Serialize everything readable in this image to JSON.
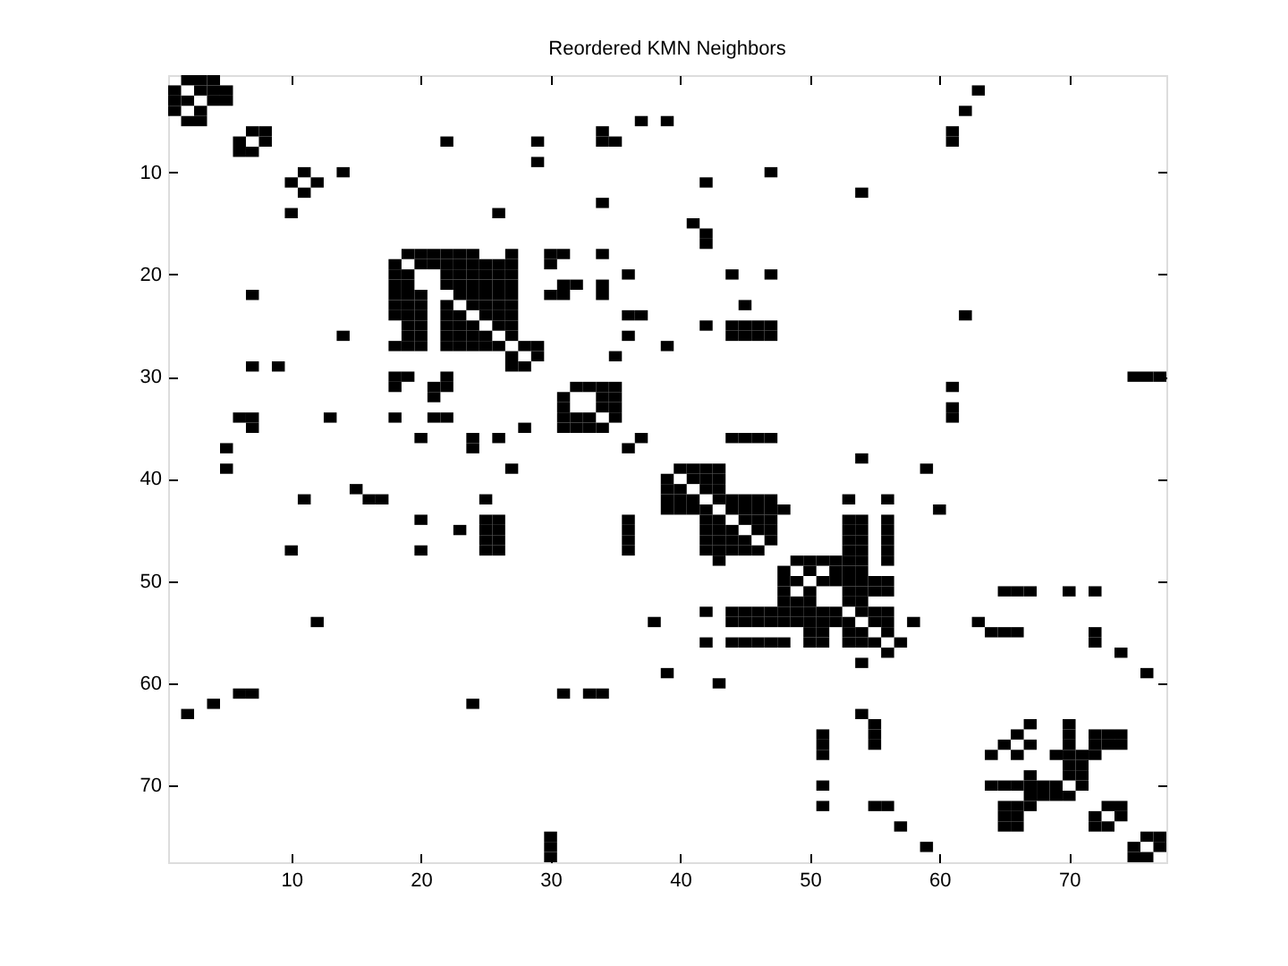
{
  "chart_data": {
    "type": "scatter",
    "title": "Reordered KMN Neighbors",
    "marker": "square",
    "color": "#000000",
    "grid": false,
    "xlim": [
      0.5,
      77.5
    ],
    "ylim": [
      77.5,
      0.5
    ],
    "xticks": [
      10,
      20,
      30,
      40,
      50,
      60,
      70
    ],
    "yticks": [
      10,
      20,
      30,
      40,
      50,
      60,
      70
    ],
    "x": [
      2,
      3,
      4,
      1,
      3,
      4,
      5,
      63,
      1,
      2,
      4,
      5,
      1,
      3,
      62,
      2,
      3,
      37,
      39,
      7,
      8,
      34,
      61,
      6,
      8,
      22,
      29,
      34,
      35,
      61,
      6,
      7,
      29,
      11,
      14,
      47,
      10,
      12,
      42,
      11,
      54,
      34,
      10,
      26,
      41,
      42,
      42,
      19,
      20,
      21,
      22,
      23,
      24,
      27,
      30,
      31,
      34,
      18,
      20,
      21,
      22,
      23,
      24,
      25,
      26,
      27,
      30,
      18,
      19,
      22,
      23,
      24,
      25,
      26,
      27,
      36,
      44,
      47,
      18,
      19,
      22,
      23,
      24,
      25,
      26,
      27,
      31,
      32,
      34,
      7,
      18,
      19,
      20,
      23,
      24,
      25,
      26,
      27,
      30,
      31,
      34,
      18,
      19,
      20,
      22,
      24,
      25,
      26,
      27,
      45,
      18,
      19,
      20,
      22,
      23,
      25,
      26,
      27,
      36,
      37,
      62,
      19,
      20,
      22,
      23,
      24,
      26,
      27,
      42,
      44,
      45,
      46,
      47,
      14,
      19,
      20,
      22,
      23,
      24,
      25,
      27,
      36,
      44,
      45,
      46,
      47,
      18,
      19,
      20,
      22,
      23,
      24,
      25,
      26,
      28,
      29,
      39,
      27,
      29,
      35,
      7,
      9,
      27,
      28,
      18,
      19,
      22,
      75,
      76,
      77,
      18,
      21,
      22,
      32,
      33,
      34,
      35,
      61,
      21,
      31,
      34,
      35,
      31,
      34,
      35,
      61,
      6,
      7,
      13,
      18,
      21,
      22,
      31,
      32,
      33,
      35,
      61,
      7,
      28,
      31,
      32,
      33,
      34,
      20,
      24,
      26,
      37,
      44,
      45,
      46,
      47,
      5,
      24,
      36,
      54,
      5,
      27,
      40,
      41,
      42,
      43,
      59,
      39,
      41,
      42,
      43,
      15,
      39,
      40,
      42,
      43,
      11,
      16,
      17,
      25,
      39,
      40,
      41,
      43,
      44,
      45,
      46,
      47,
      53,
      56,
      39,
      40,
      41,
      42,
      44,
      45,
      46,
      47,
      48,
      60,
      20,
      25,
      26,
      36,
      42,
      43,
      45,
      46,
      47,
      53,
      54,
      56,
      23,
      25,
      26,
      36,
      42,
      43,
      44,
      46,
      47,
      53,
      54,
      56,
      25,
      26,
      36,
      42,
      43,
      44,
      45,
      47,
      53,
      54,
      56,
      10,
      20,
      25,
      26,
      36,
      42,
      43,
      44,
      45,
      46,
      53,
      54,
      56,
      43,
      49,
      50,
      51,
      52,
      53,
      54,
      56,
      48,
      50,
      52,
      53,
      54,
      48,
      49,
      51,
      52,
      53,
      54,
      55,
      56,
      48,
      50,
      53,
      54,
      55,
      56,
      65,
      66,
      67,
      70,
      72,
      48,
      49,
      50,
      53,
      54,
      42,
      44,
      45,
      46,
      47,
      48,
      49,
      50,
      51,
      52,
      54,
      55,
      56,
      12,
      38,
      44,
      45,
      46,
      47,
      48,
      49,
      50,
      51,
      52,
      53,
      55,
      56,
      58,
      63,
      50,
      51,
      53,
      54,
      56,
      64,
      65,
      66,
      72,
      42,
      44,
      45,
      46,
      47,
      48,
      50,
      51,
      53,
      54,
      55,
      57,
      72,
      56,
      74,
      54,
      39,
      76,
      43,
      6,
      7,
      31,
      33,
      34,
      4,
      24,
      2,
      54,
      55,
      67,
      70,
      51,
      55,
      66,
      70,
      72,
      73,
      74,
      51,
      55,
      65,
      67,
      70,
      72,
      73,
      74,
      51,
      64,
      66,
      69,
      70,
      71,
      72,
      70,
      71,
      67,
      70,
      71,
      51,
      64,
      65,
      66,
      67,
      68,
      69,
      71,
      67,
      68,
      69,
      70,
      51,
      55,
      56,
      65,
      66,
      67,
      73,
      74,
      65,
      66,
      72,
      74,
      57,
      65,
      66,
      72,
      73,
      30,
      76,
      77,
      30,
      59,
      75,
      77,
      30,
      75,
      76
    ],
    "values": [
      1,
      1,
      1,
      2,
      2,
      2,
      2,
      2,
      3,
      3,
      3,
      3,
      4,
      4,
      4,
      5,
      5,
      5,
      5,
      6,
      6,
      6,
      6,
      7,
      7,
      7,
      7,
      7,
      7,
      7,
      8,
      8,
      9,
      10,
      10,
      10,
      11,
      11,
      11,
      12,
      12,
      13,
      14,
      14,
      15,
      16,
      17,
      18,
      18,
      18,
      18,
      18,
      18,
      18,
      18,
      18,
      18,
      19,
      19,
      19,
      19,
      19,
      19,
      19,
      19,
      19,
      19,
      20,
      20,
      20,
      20,
      20,
      20,
      20,
      20,
      20,
      20,
      20,
      21,
      21,
      21,
      21,
      21,
      21,
      21,
      21,
      21,
      21,
      21,
      22,
      22,
      22,
      22,
      22,
      22,
      22,
      22,
      22,
      22,
      22,
      22,
      23,
      23,
      23,
      23,
      23,
      23,
      23,
      23,
      23,
      24,
      24,
      24,
      24,
      24,
      24,
      24,
      24,
      24,
      24,
      24,
      25,
      25,
      25,
      25,
      25,
      25,
      25,
      25,
      25,
      25,
      25,
      25,
      26,
      26,
      26,
      26,
      26,
      26,
      26,
      26,
      26,
      26,
      26,
      26,
      26,
      27,
      27,
      27,
      27,
      27,
      27,
      27,
      27,
      27,
      27,
      27,
      28,
      28,
      28,
      29,
      29,
      29,
      29,
      30,
      30,
      30,
      30,
      30,
      30,
      31,
      31,
      31,
      31,
      31,
      31,
      31,
      31,
      32,
      32,
      32,
      32,
      33,
      33,
      33,
      33,
      34,
      34,
      34,
      34,
      34,
      34,
      34,
      34,
      34,
      34,
      34,
      35,
      35,
      35,
      35,
      35,
      35,
      36,
      36,
      36,
      36,
      36,
      36,
      36,
      36,
      37,
      37,
      37,
      38,
      39,
      39,
      39,
      39,
      39,
      39,
      39,
      40,
      40,
      40,
      40,
      41,
      41,
      41,
      41,
      41,
      42,
      42,
      42,
      42,
      42,
      42,
      42,
      42,
      42,
      42,
      42,
      42,
      42,
      42,
      43,
      43,
      43,
      43,
      43,
      43,
      43,
      43,
      43,
      43,
      44,
      44,
      44,
      44,
      44,
      44,
      44,
      44,
      44,
      44,
      44,
      44,
      45,
      45,
      45,
      45,
      45,
      45,
      45,
      45,
      45,
      45,
      45,
      45,
      46,
      46,
      46,
      46,
      46,
      46,
      46,
      46,
      46,
      46,
      46,
      47,
      47,
      47,
      47,
      47,
      47,
      47,
      47,
      47,
      47,
      47,
      47,
      47,
      48,
      48,
      48,
      48,
      48,
      48,
      48,
      48,
      49,
      49,
      49,
      49,
      49,
      50,
      50,
      50,
      50,
      50,
      50,
      50,
      50,
      51,
      51,
      51,
      51,
      51,
      51,
      51,
      51,
      51,
      51,
      51,
      52,
      52,
      52,
      52,
      52,
      53,
      53,
      53,
      53,
      53,
      53,
      53,
      53,
      53,
      53,
      53,
      53,
      53,
      54,
      54,
      54,
      54,
      54,
      54,
      54,
      54,
      54,
      54,
      54,
      54,
      54,
      54,
      54,
      54,
      55,
      55,
      55,
      55,
      55,
      55,
      55,
      55,
      55,
      56,
      56,
      56,
      56,
      56,
      56,
      56,
      56,
      56,
      56,
      56,
      56,
      56,
      57,
      57,
      58,
      59,
      59,
      60,
      61,
      61,
      61,
      61,
      61,
      62,
      62,
      63,
      63,
      64,
      64,
      64,
      65,
      65,
      65,
      65,
      65,
      65,
      65,
      66,
      66,
      66,
      66,
      66,
      66,
      66,
      66,
      67,
      67,
      67,
      67,
      67,
      67,
      67,
      68,
      68,
      69,
      69,
      69,
      70,
      70,
      70,
      70,
      70,
      70,
      70,
      70,
      71,
      71,
      71,
      71,
      72,
      72,
      72,
      72,
      72,
      72,
      72,
      72,
      73,
      73,
      73,
      73,
      74,
      74,
      74,
      74,
      74,
      75,
      75,
      75,
      76,
      76,
      76,
      76,
      77,
      77,
      77
    ]
  }
}
